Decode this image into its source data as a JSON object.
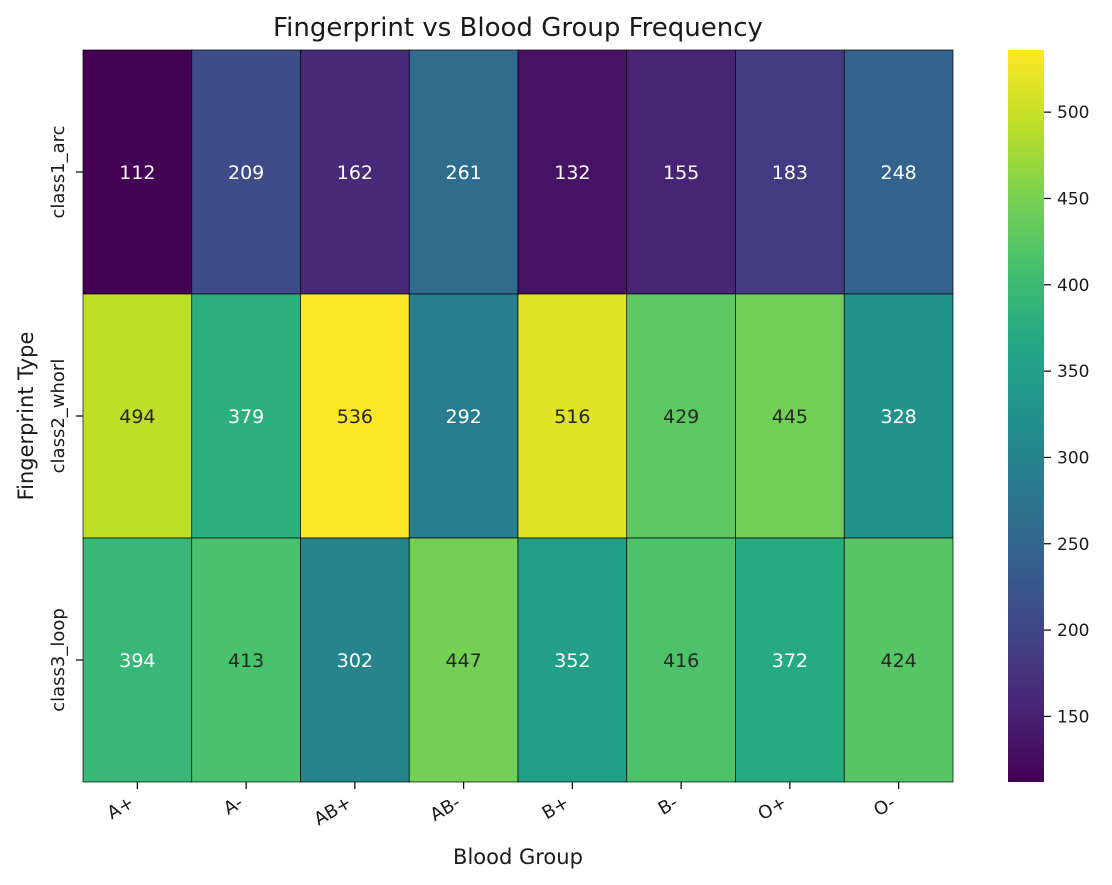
{
  "chart_data": {
    "type": "heatmap",
    "title": "Fingerprint vs Blood Group Frequency",
    "xlabel": "Blood Group",
    "ylabel": "Fingerprint Type",
    "x_categories": [
      "A+",
      "A-",
      "AB+",
      "AB-",
      "B+",
      "B-",
      "O+",
      "O-"
    ],
    "y_categories": [
      "class1_arc",
      "class2_whorl",
      "class3_loop"
    ],
    "values": [
      [
        112,
        209,
        162,
        261,
        132,
        155,
        183,
        248
      ],
      [
        494,
        379,
        536,
        292,
        516,
        429,
        445,
        328
      ],
      [
        394,
        413,
        302,
        447,
        352,
        416,
        372,
        424
      ]
    ],
    "colormap": "viridis",
    "value_range": [
      112,
      536
    ],
    "colorbar_ticks": [
      150,
      200,
      250,
      300,
      350,
      400,
      450,
      500
    ],
    "annotations": true,
    "cell_border_color": "#000000"
  }
}
